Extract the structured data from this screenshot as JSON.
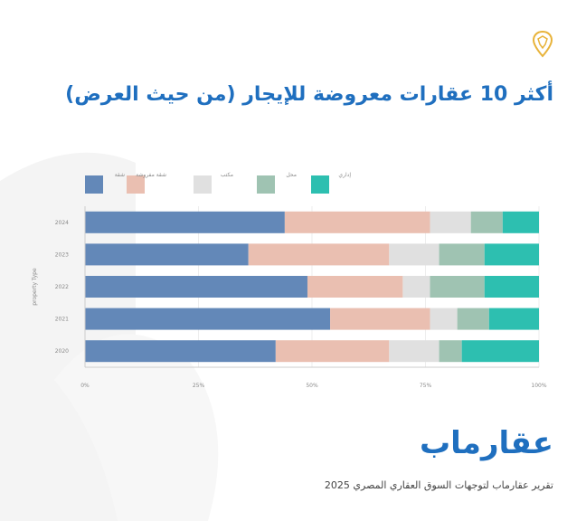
{
  "header": {
    "title": "أكثر 10 عقارات معروضة للإيجار (من حيث العرض)",
    "logo_icon": "map-pin-icon"
  },
  "chart_data": {
    "type": "bar",
    "orientation": "horizontal",
    "stacked": "percent",
    "categories": [
      "2024",
      "2023",
      "2022",
      "2021",
      "2020"
    ],
    "ylabel": "property Type",
    "xlabel": "",
    "xlim": [
      0,
      100
    ],
    "x_ticks": [
      "0%",
      "25%",
      "50%",
      "75%",
      "100%"
    ],
    "legend_position": "top",
    "series": [
      {
        "name": "شقة",
        "color": "#6388b8",
        "values": [
          44,
          36,
          49,
          54,
          42
        ]
      },
      {
        "name": "شقة مفروشة",
        "color": "#eabfb1",
        "values": [
          32,
          31,
          21,
          22,
          25
        ]
      },
      {
        "name": "مكتب",
        "color": "#e0e0e0",
        "values": [
          9,
          11,
          6,
          6,
          11
        ]
      },
      {
        "name": "محل",
        "color": "#9fc3b2",
        "values": [
          7,
          10,
          12,
          7,
          5
        ]
      },
      {
        "name": "إداري",
        "color": "#2dbfb0",
        "values": [
          8,
          12,
          12,
          11,
          17
        ]
      }
    ]
  },
  "footer": {
    "brand": "عقارماب",
    "subtitle": "تقرير عقارماب لتوجهات السوق العقاري المصري 2025"
  },
  "colors": {
    "accent": "#1f6fbf",
    "logo": "#e8b33a",
    "background_shape": "#f3f3f3"
  }
}
